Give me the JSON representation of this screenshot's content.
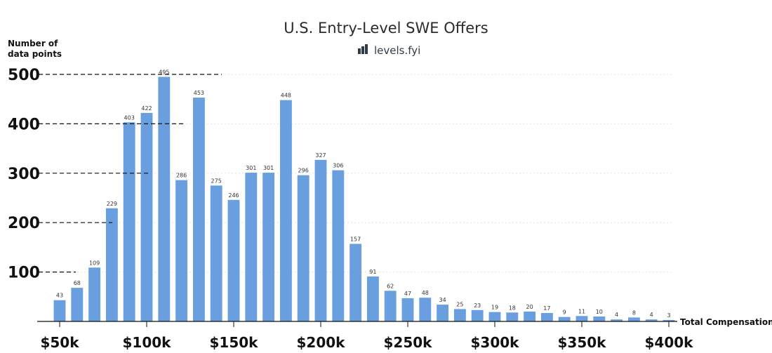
{
  "chart_data": {
    "type": "bar",
    "title": "U.S. Entry-Level SWE Offers",
    "brand": "levels.fyi",
    "ylabel_line1": "Number of",
    "ylabel_line2": "data points",
    "xlabel": "Total Compensation",
    "x": [
      50,
      60,
      70,
      80,
      90,
      100,
      110,
      120,
      130,
      140,
      150,
      160,
      170,
      180,
      190,
      200,
      210,
      220,
      230,
      240,
      250,
      260,
      270,
      280,
      290,
      300,
      310,
      320,
      330,
      340,
      350,
      360,
      370,
      380,
      390,
      400
    ],
    "values": [
      43,
      68,
      109,
      229,
      403,
      422,
      495,
      286,
      453,
      275,
      246,
      301,
      301,
      448,
      296,
      327,
      306,
      157,
      91,
      62,
      47,
      48,
      34,
      25,
      23,
      19,
      18,
      20,
      17,
      9,
      11,
      10,
      4,
      8,
      4,
      3
    ],
    "ylim": [
      0,
      500
    ],
    "yticks": [
      100,
      200,
      300,
      400,
      500
    ],
    "xlim": [
      50,
      400
    ],
    "xticks": [
      50,
      100,
      150,
      200,
      250,
      300,
      350,
      400
    ],
    "xtick_labels": [
      "$50k",
      "$100k",
      "$150k",
      "$200k",
      "$250k",
      "$300k",
      "$350k",
      "$400k"
    ],
    "bar_color": "#6a9fdf",
    "grid": "horizontal dotted"
  }
}
